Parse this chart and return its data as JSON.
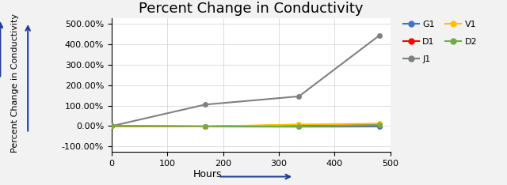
{
  "title": "Percent Change in Conductivity",
  "xlabel": "Hours",
  "ylabel": "Percent Change in Conductivity",
  "xlim": [
    0,
    500
  ],
  "ylim": [
    -1.25,
    5.25
  ],
  "yticks": [
    -1,
    0,
    1,
    2,
    3,
    4,
    5
  ],
  "ytick_labels": [
    "-100.00%",
    "0.00%",
    "100.00%",
    "200.00%",
    "300.00%",
    "400.00%",
    "500.00%"
  ],
  "xticks": [
    0,
    100,
    200,
    300,
    400,
    500
  ],
  "background_color": "#f2f2f2",
  "plot_bg_color": "#ffffff",
  "series": {
    "G1": {
      "x": [
        0,
        168,
        336,
        480
      ],
      "y": [
        0.0,
        -0.02,
        -0.03,
        -0.02
      ],
      "color": "#4472C4",
      "marker": "o",
      "linewidth": 1.5
    },
    "D1": {
      "x": [
        0,
        168,
        336,
        480
      ],
      "y": [
        0.0,
        -0.02,
        0.05,
        0.05
      ],
      "color": "#FF0000",
      "marker": "o",
      "linewidth": 1.5
    },
    "J1": {
      "x": [
        0,
        168,
        336,
        480
      ],
      "y": [
        0.0,
        1.05,
        1.45,
        4.42
      ],
      "color": "#808080",
      "marker": "o",
      "linewidth": 1.5
    },
    "V1": {
      "x": [
        0,
        168,
        336,
        480
      ],
      "y": [
        0.0,
        -0.02,
        0.08,
        0.12
      ],
      "color": "#FFC000",
      "marker": "o",
      "linewidth": 1.5
    },
    "D2": {
      "x": [
        0,
        168,
        336,
        480
      ],
      "y": [
        0.0,
        -0.01,
        -0.02,
        0.05
      ],
      "color": "#70AD47",
      "marker": "o",
      "linewidth": 1.5
    }
  },
  "legend_order": [
    "G1",
    "D1",
    "J1",
    "V1",
    "D2"
  ],
  "arrow_color": "#1F3F99",
  "title_fontsize": 13,
  "tick_fontsize": 8,
  "xlabel_fontsize": 9,
  "ylabel_fontsize": 8
}
